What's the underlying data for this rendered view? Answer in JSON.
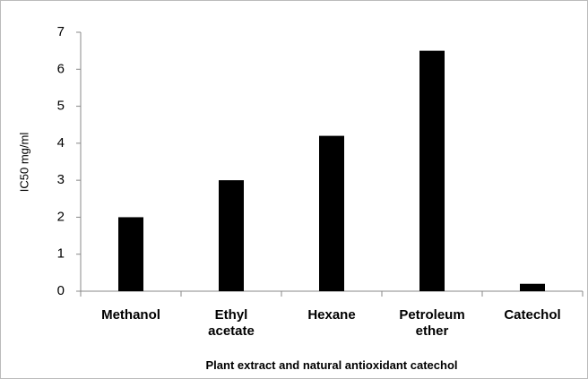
{
  "chart_data": {
    "type": "bar",
    "x_label": "Plant extract and natural antioxidant catechol",
    "y_label": "IC50 mg/ml",
    "categories": [
      "Methanol",
      "Ethyl acetate",
      "Hexane",
      "Petroleum ether",
      "Catechol"
    ],
    "values": [
      2,
      3,
      4.2,
      6.5,
      0.2
    ],
    "color": "#000000",
    "ylim": [
      0,
      7
    ],
    "yticks": [
      0,
      1,
      2,
      3,
      4,
      5,
      6,
      7
    ],
    "grid": false
  }
}
